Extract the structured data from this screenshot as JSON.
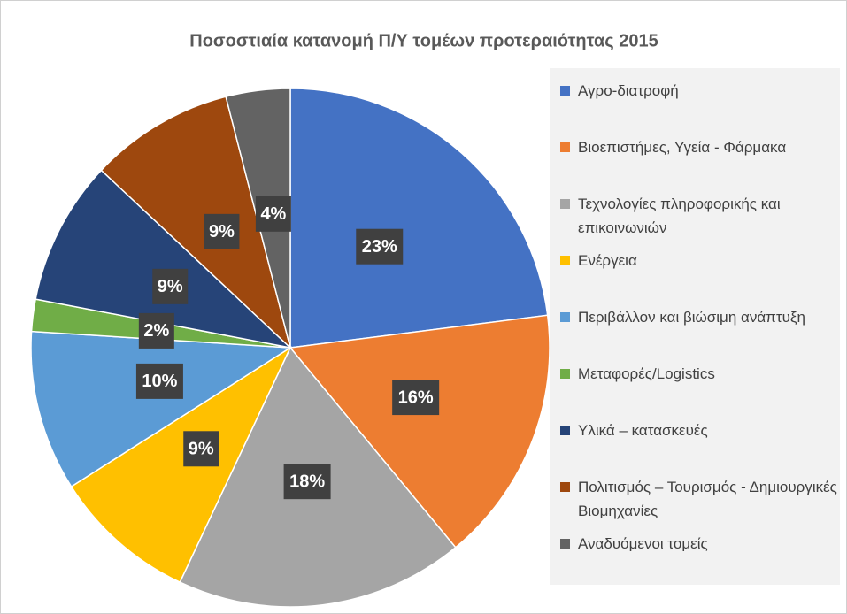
{
  "chart_data": {
    "type": "pie",
    "title": "Ποσοστιαία κατανομή Π/Υ τομέων προτεραιότητας 2015",
    "categories": [
      "Αγρο-διατροφή",
      "Βιοεπιστήμες, Υγεία - Φάρμακα",
      "Τεχνολογίες πληροφορικής και επικοινωνιών",
      "Ενέργεια",
      "Περιβάλλον και βιώσιμη ανάπτυξη",
      "Μεταφορές/Logistics",
      "Υλικά – κατασκευές",
      "Πολιτισμός – Τουρισμός - Δημιουργικές Βιομηχανίες",
      "Αναδυόμενοι τομείς"
    ],
    "values": [
      23,
      16,
      18,
      9,
      10,
      2,
      9,
      9,
      4
    ],
    "value_labels": [
      "23%",
      "16%",
      "18%",
      "9%",
      "10%",
      "2%",
      "9%",
      "9%",
      "4%"
    ],
    "colors": [
      "#4472c4",
      "#ed7d31",
      "#a5a5a5",
      "#ffc000",
      "#5b9bd5",
      "#70ad47",
      "#264478",
      "#9e480e",
      "#636363"
    ],
    "legend": "right"
  }
}
